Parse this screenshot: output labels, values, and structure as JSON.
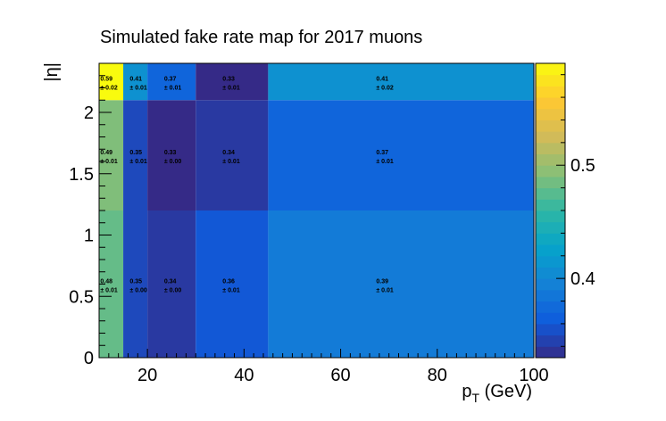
{
  "chart_data": {
    "type": "heatmap",
    "title": "Simulated fake rate map for 2017 muons",
    "xlabel": "p_T (GeV)",
    "ylabel": "|η|",
    "x_edges": [
      10,
      15,
      20,
      30,
      45,
      100
    ],
    "y_edges": [
      0,
      1.2,
      2.1,
      2.4
    ],
    "xlim": [
      10,
      100
    ],
    "ylim": [
      0,
      2.4
    ],
    "x_ticks": [
      "20",
      "40",
      "60",
      "80",
      "100"
    ],
    "x_tick_values": [
      20,
      40,
      60,
      80,
      100
    ],
    "y_ticks": [
      "0",
      "0.5",
      "1",
      "1.5",
      "2"
    ],
    "y_tick_values": [
      0,
      0.5,
      1,
      1.5,
      2
    ],
    "z_range": [
      0.33,
      0.59
    ],
    "colorbar_ticks": [
      "0.4",
      "0.5"
    ],
    "colorbar_tick_values": [
      0.4,
      0.5
    ],
    "rows": [
      {
        "y_range": [
          0,
          1.2
        ],
        "values": [
          0.48,
          0.35,
          0.34,
          0.36,
          0.39
        ],
        "labels": [
          "0.48",
          "0.35",
          "0.34",
          "0.36",
          "0.39"
        ],
        "errors": [
          "± 0.01",
          "± 0.00",
          "± 0.00",
          "± 0.01",
          "± 0.01"
        ]
      },
      {
        "y_range": [
          1.2,
          2.1
        ],
        "values": [
          0.49,
          0.35,
          0.33,
          0.34,
          0.37
        ],
        "labels": [
          "0.49",
          "0.35",
          "0.33",
          "0.34",
          "0.37"
        ],
        "errors": [
          "± 0.01",
          "± 0.01",
          "± 0.00",
          "± 0.01",
          "± 0.01"
        ]
      },
      {
        "y_range": [
          2.1,
          2.4
        ],
        "values": [
          0.59,
          0.41,
          0.37,
          0.33,
          0.41
        ],
        "labels": [
          "0.59",
          "0.41",
          "0.37",
          "0.33",
          "0.41"
        ],
        "errors": [
          "± 0.02",
          "± 0.01",
          "± 0.01",
          "± 0.01",
          "± 0.02"
        ]
      }
    ],
    "colormap": [
      "#352a87",
      "#0f5cdd",
      "#1481d6",
      "#06a4ca",
      "#2eb7a4",
      "#87bf77",
      "#d1bb59",
      "#fec832",
      "#f9fb0e"
    ]
  }
}
